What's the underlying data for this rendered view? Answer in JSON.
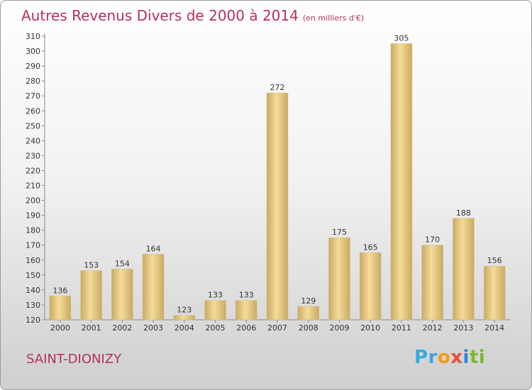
{
  "header": {
    "title": "Autres Revenus Divers de 2000 à 2014",
    "subtitle": "(en milliers d'€)"
  },
  "commune": "SAINT-DIONIZY",
  "logo": {
    "letters": [
      "P",
      "r",
      "o",
      "x",
      "i",
      "t",
      "i"
    ],
    "colors": [
      "#3aa7e0",
      "#3aa7e0",
      "#f39c12",
      "#e74c3c",
      "#2e86de",
      "#7cb82f",
      "#7cb82f"
    ]
  },
  "colors": {
    "title": "#b5315d",
    "bar_light": "#f5dc98",
    "bar_dark": "#c8aa63",
    "axis": "#8a8a8a"
  },
  "chart_data": {
    "type": "bar",
    "title": "Autres Revenus Divers de 2000 à 2014",
    "subtitle": "(en milliers d'€)",
    "categories": [
      "2000",
      "2001",
      "2002",
      "2003",
      "2004",
      "2005",
      "2006",
      "2007",
      "2008",
      "2009",
      "2010",
      "2011",
      "2012",
      "2013",
      "2014"
    ],
    "values": [
      136,
      153,
      154,
      164,
      123,
      133,
      133,
      272,
      129,
      175,
      165,
      305,
      170,
      188,
      156
    ],
    "ylim": [
      120,
      310
    ],
    "yticks": [
      120,
      130,
      140,
      150,
      160,
      170,
      180,
      190,
      200,
      210,
      220,
      230,
      240,
      250,
      260,
      270,
      280,
      290,
      300,
      310
    ],
    "grid": false,
    "legend": "none"
  }
}
